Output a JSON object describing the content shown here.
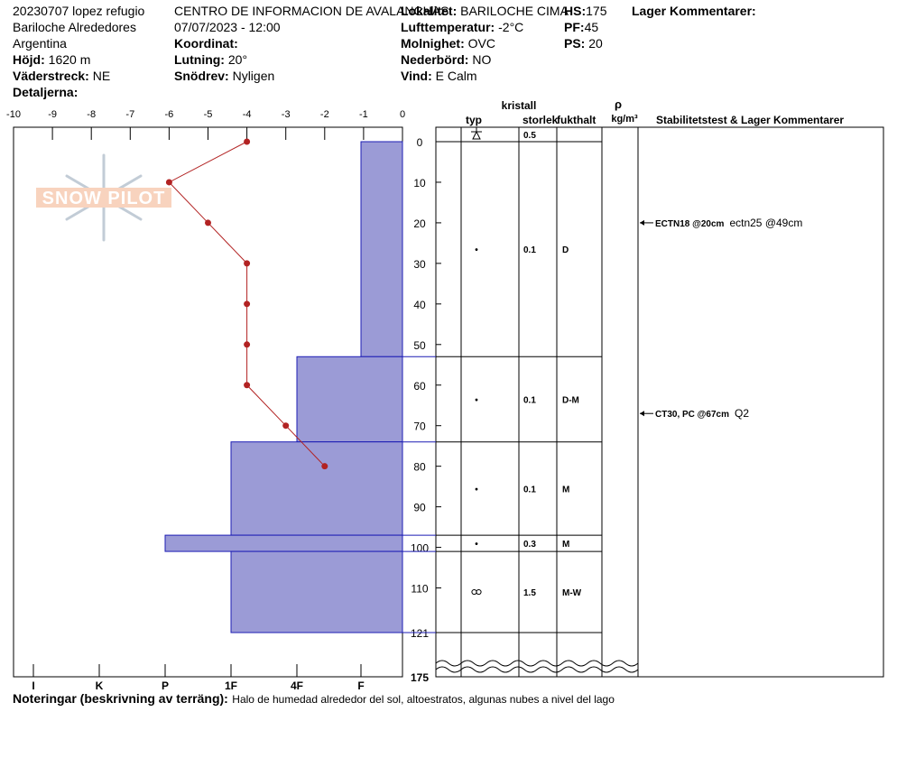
{
  "header": {
    "name": "20230707 lopez refugio",
    "area": "Bariloche Alrededores",
    "country": "Argentina",
    "organization": "CENTRO DE INFORMACION DE AVALANCHAS",
    "datetime": "07/07/2023 - 12:00",
    "fields": [
      {
        "label": "Höjd:",
        "value": "1620 m"
      },
      {
        "label": "Väderstreck:",
        "value": "NE"
      },
      {
        "label": "Detaljerna:"
      },
      {
        "label": "Koordinat:"
      },
      {
        "label": "Lutning:",
        "value": "20°"
      },
      {
        "label": "Snödrev:",
        "value": "Nyligen"
      },
      {
        "label": "Lokalitet:",
        "value": "BARILOCHE CIMA"
      },
      {
        "label": "Lufttemperatur:",
        "value": "-2°C"
      },
      {
        "label": "Molnighet:",
        "value": "OVC"
      },
      {
        "label": "Nederbörd:",
        "value": "NO"
      },
      {
        "label": "Vind:",
        "value": "E Calm"
      },
      {
        "label": "HS:",
        "value": 175
      },
      {
        "label": "PF:",
        "value": 45
      },
      {
        "label": "PS:",
        "value": 20
      },
      {
        "label": "Lager Kommentarer:"
      }
    ]
  },
  "logo": "SNOW PILOT",
  "profile": {
    "temperature_ticks": [
      -10,
      -9,
      -8,
      -7,
      -6,
      -5,
      -4,
      -3,
      -2,
      -1,
      0
    ],
    "depth_ticks": [
      0,
      10,
      20,
      30,
      40,
      50,
      60,
      70,
      80,
      90,
      100,
      110,
      121
    ],
    "total_depth": 175,
    "hardness_ticks": [
      "I",
      "K",
      "P",
      "1F",
      "4F",
      "F"
    ],
    "temperature": {
      "depth": [
        0,
        10,
        20,
        30,
        40,
        50,
        60,
        70,
        80
      ],
      "temp": [
        -4,
        -6,
        -5,
        -4,
        -4,
        -4,
        -4,
        -3,
        -2
      ]
    },
    "surface": {
      "size": 0.5
    },
    "layers": [
      {
        "top": 0,
        "bottom": 53,
        "hardness": "F",
        "grain": "•",
        "size": 0.1,
        "moisture": "D"
      },
      {
        "top": 53,
        "bottom": 74,
        "hardness": "4F",
        "grain": "•",
        "size": 0.1,
        "moisture": "D-M"
      },
      {
        "top": 74,
        "bottom": 97,
        "hardness": "1F",
        "grain": "•",
        "size": 0.1,
        "moisture": "M"
      },
      {
        "top": 97,
        "bottom": 101,
        "hardness": "P",
        "grain": "•",
        "size": 0.3,
        "moisture": "M"
      },
      {
        "top": 101,
        "bottom": 121,
        "hardness": "1F",
        "size": 1.5,
        "moisture": "M-W"
      }
    ],
    "tests": [
      {
        "depth": 20,
        "result": "ECTN18 @20cm",
        "comment": "ectn25 @49cm"
      },
      {
        "depth": 67,
        "result": "CT30, PC @67cm",
        "comment": "Q2"
      }
    ],
    "columns": {
      "crystal": "kristall",
      "grain": "typ",
      "size": "storlek",
      "moisture": "fukthalt",
      "density": "ρ",
      "density_unit": "kg/m³",
      "comments": "Stabilitetstest & Lager Kommentarer"
    }
  },
  "notes": {
    "label": "Noteringar (beskrivning av terräng):",
    "text": "Halo de humedad alrededor del sol, altoestratos, algunas nubes a nivel del lago"
  }
}
